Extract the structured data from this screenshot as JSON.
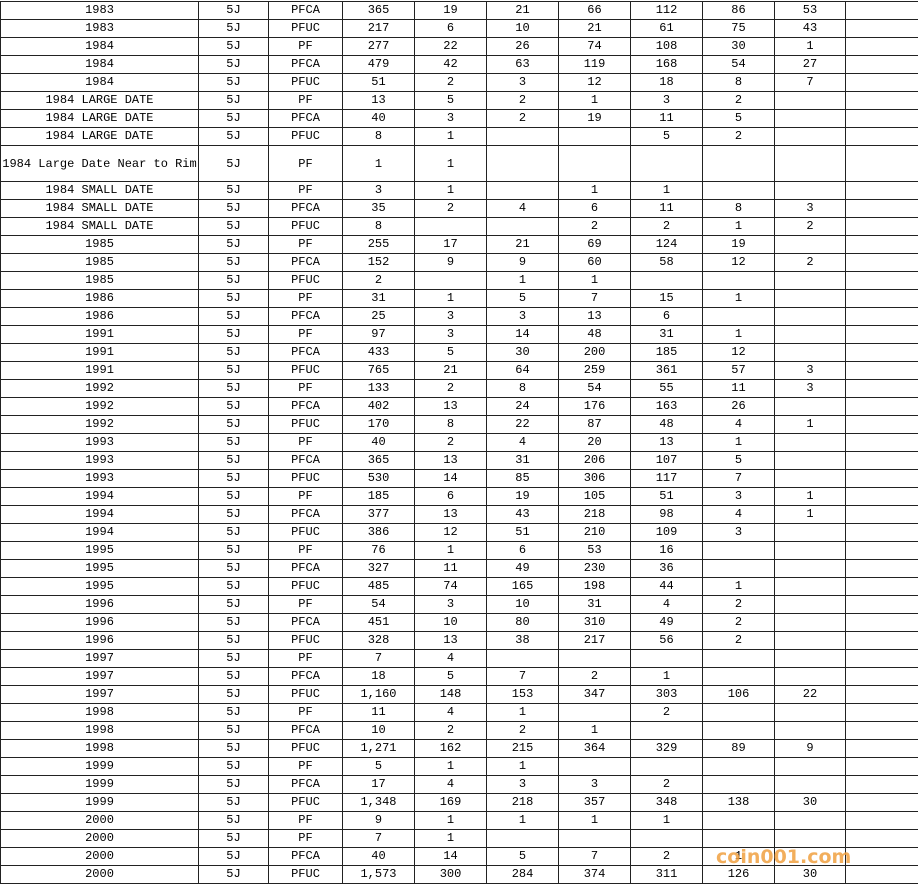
{
  "table": {
    "rows": [
      [
        "1983",
        "5J",
        "PFCA",
        "365",
        "19",
        "21",
        "66",
        "112",
        "86",
        "53"
      ],
      [
        "1983",
        "5J",
        "PFUC",
        "217",
        "6",
        "10",
        "21",
        "61",
        "75",
        "43"
      ],
      [
        "1984",
        "5J",
        "PF",
        "277",
        "22",
        "26",
        "74",
        "108",
        "30",
        "1"
      ],
      [
        "1984",
        "5J",
        "PFCA",
        "479",
        "42",
        "63",
        "119",
        "168",
        "54",
        "27"
      ],
      [
        "1984",
        "5J",
        "PFUC",
        "51",
        "2",
        "3",
        "12",
        "18",
        "8",
        "7"
      ],
      [
        "1984 LARGE DATE",
        "5J",
        "PF",
        "13",
        "5",
        "2",
        "1",
        "3",
        "2",
        null
      ],
      [
        "1984 LARGE DATE",
        "5J",
        "PFCA",
        "40",
        "3",
        "2",
        "19",
        "11",
        "5",
        null
      ],
      [
        "1984 LARGE DATE",
        "5J",
        "PFUC",
        "8",
        "1",
        null,
        null,
        "5",
        "2",
        null
      ],
      [
        "1984 Large Date Near to Rim",
        "5J",
        "PF",
        "1",
        "1",
        null,
        null,
        null,
        null,
        null
      ],
      [
        "1984 SMALL DATE",
        "5J",
        "PF",
        "3",
        "1",
        null,
        "1",
        "1",
        null,
        null
      ],
      [
        "1984 SMALL DATE",
        "5J",
        "PFCA",
        "35",
        "2",
        "4",
        "6",
        "11",
        "8",
        "3"
      ],
      [
        "1984 SMALL DATE",
        "5J",
        "PFUC",
        "8",
        null,
        null,
        "2",
        "2",
        "1",
        "2"
      ],
      [
        "1985",
        "5J",
        "PF",
        "255",
        "17",
        "21",
        "69",
        "124",
        "19",
        null
      ],
      [
        "1985",
        "5J",
        "PFCA",
        "152",
        "9",
        "9",
        "60",
        "58",
        "12",
        "2"
      ],
      [
        "1985",
        "5J",
        "PFUC",
        "2",
        null,
        "1",
        "1",
        null,
        null,
        null
      ],
      [
        "1986",
        "5J",
        "PF",
        "31",
        "1",
        "5",
        "7",
        "15",
        "1",
        null
      ],
      [
        "1986",
        "5J",
        "PFCA",
        "25",
        "3",
        "3",
        "13",
        "6",
        null,
        null
      ],
      [
        "1991",
        "5J",
        "PF",
        "97",
        "3",
        "14",
        "48",
        "31",
        "1",
        null
      ],
      [
        "1991",
        "5J",
        "PFCA",
        "433",
        "5",
        "30",
        "200",
        "185",
        "12",
        null
      ],
      [
        "1991",
        "5J",
        "PFUC",
        "765",
        "21",
        "64",
        "259",
        "361",
        "57",
        "3"
      ],
      [
        "1992",
        "5J",
        "PF",
        "133",
        "2",
        "8",
        "54",
        "55",
        "11",
        "3"
      ],
      [
        "1992",
        "5J",
        "PFCA",
        "402",
        "13",
        "24",
        "176",
        "163",
        "26",
        null
      ],
      [
        "1992",
        "5J",
        "PFUC",
        "170",
        "8",
        "22",
        "87",
        "48",
        "4",
        "1"
      ],
      [
        "1993",
        "5J",
        "PF",
        "40",
        "2",
        "4",
        "20",
        "13",
        "1",
        null
      ],
      [
        "1993",
        "5J",
        "PFCA",
        "365",
        "13",
        "31",
        "206",
        "107",
        "5",
        null
      ],
      [
        "1993",
        "5J",
        "PFUC",
        "530",
        "14",
        "85",
        "306",
        "117",
        "7",
        null
      ],
      [
        "1994",
        "5J",
        "PF",
        "185",
        "6",
        "19",
        "105",
        "51",
        "3",
        "1"
      ],
      [
        "1994",
        "5J",
        "PFCA",
        "377",
        "13",
        "43",
        "218",
        "98",
        "4",
        "1"
      ],
      [
        "1994",
        "5J",
        "PFUC",
        "386",
        "12",
        "51",
        "210",
        "109",
        "3",
        null
      ],
      [
        "1995",
        "5J",
        "PF",
        "76",
        "1",
        "6",
        "53",
        "16",
        null,
        null
      ],
      [
        "1995",
        "5J",
        "PFCA",
        "327",
        "11",
        "49",
        "230",
        "36",
        null,
        null
      ],
      [
        "1995",
        "5J",
        "PFUC",
        "485",
        "74",
        "165",
        "198",
        "44",
        "1",
        null
      ],
      [
        "1996",
        "5J",
        "PF",
        "54",
        "3",
        "10",
        "31",
        "4",
        "2",
        null
      ],
      [
        "1996",
        "5J",
        "PFCA",
        "451",
        "10",
        "80",
        "310",
        "49",
        "2",
        null
      ],
      [
        "1996",
        "5J",
        "PFUC",
        "328",
        "13",
        "38",
        "217",
        "56",
        "2",
        null
      ],
      [
        "1997",
        "5J",
        "PF",
        "7",
        "4",
        null,
        null,
        null,
        null,
        null
      ],
      [
        "1997",
        "5J",
        "PFCA",
        "18",
        "5",
        "7",
        "2",
        "1",
        null,
        null
      ],
      [
        "1997",
        "5J",
        "PFUC",
        "1,160",
        "148",
        "153",
        "347",
        "303",
        "106",
        "22"
      ],
      [
        "1998",
        "5J",
        "PF",
        "11",
        "4",
        "1",
        null,
        "2",
        null,
        null
      ],
      [
        "1998",
        "5J",
        "PFCA",
        "10",
        "2",
        "2",
        "1",
        null,
        null,
        null
      ],
      [
        "1998",
        "5J",
        "PFUC",
        "1,271",
        "162",
        "215",
        "364",
        "329",
        "89",
        "9"
      ],
      [
        "1999",
        "5J",
        "PF",
        "5",
        "1",
        "1",
        null,
        null,
        null,
        null
      ],
      [
        "1999",
        "5J",
        "PFCA",
        "17",
        "4",
        "3",
        "3",
        "2",
        null,
        null
      ],
      [
        "1999",
        "5J",
        "PFUC",
        "1,348",
        "169",
        "218",
        "357",
        "348",
        "138",
        "30"
      ],
      [
        "2000",
        "5J",
        "PF",
        "9",
        "1",
        "1",
        "1",
        "1",
        null,
        null
      ],
      [
        "2000",
        "5J",
        "PF",
        "7",
        "1",
        null,
        null,
        null,
        null,
        null
      ],
      [
        "2000",
        "5J",
        "PFCA",
        "40",
        "14",
        "5",
        "7",
        "2",
        "1",
        null
      ],
      [
        "2000",
        "5J",
        "PFUC",
        "1,573",
        "300",
        "284",
        "374",
        "311",
        "126",
        "30"
      ]
    ]
  },
  "watermark": "coin001.com"
}
